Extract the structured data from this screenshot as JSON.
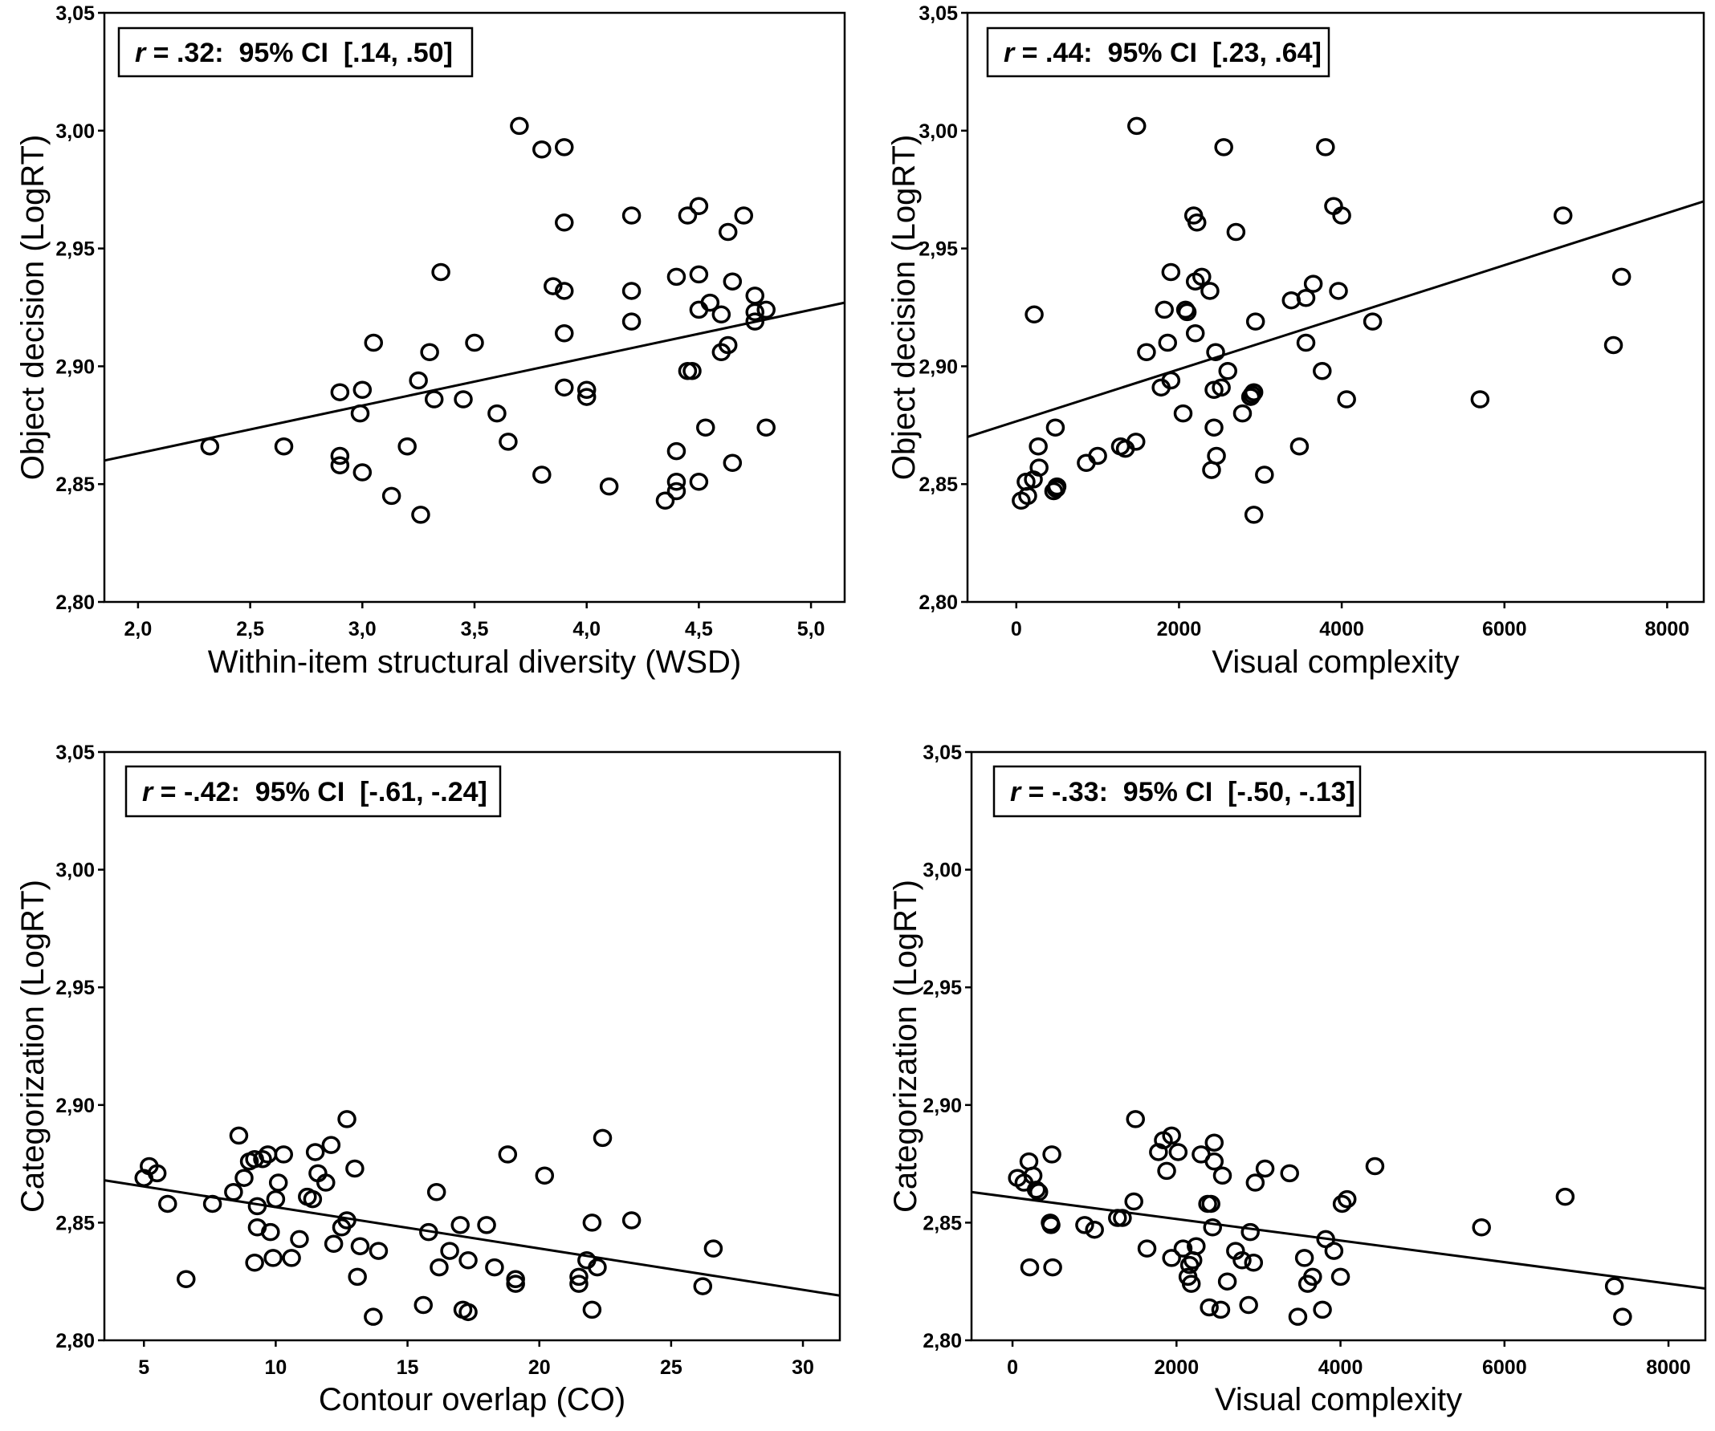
{
  "chart_data": [
    {
      "type": "scatter",
      "xlabel": "Within-item structural diversity (WSD)",
      "ylabel": "Object decision (LogRT)",
      "annotation": {
        "r_symbol": "r",
        "text": " = .32:  95% CI  [.14, .50]"
      },
      "xlim": [
        1.85,
        5.15
      ],
      "ylim": [
        2.8,
        3.05
      ],
      "xticks": [
        2.0,
        2.5,
        3.0,
        3.5,
        4.0,
        4.5,
        5.0
      ],
      "xtick_labels": [
        "2,0",
        "2,5",
        "3,0",
        "3,5",
        "4,0",
        "4,5",
        "5,0"
      ],
      "yticks": [
        2.8,
        2.85,
        2.9,
        2.95,
        3.0,
        3.05
      ],
      "ytick_labels": [
        "2,80",
        "2,85",
        "2,90",
        "2,95",
        "3,00",
        "3,05"
      ],
      "fit_line": {
        "x": [
          1.85,
          5.15
        ],
        "y": [
          2.86,
          2.927
        ]
      },
      "points": [
        [
          2.32,
          2.866
        ],
        [
          2.65,
          2.866
        ],
        [
          2.9,
          2.889
        ],
        [
          2.9,
          2.862
        ],
        [
          2.9,
          2.858
        ],
        [
          3.0,
          2.89
        ],
        [
          2.99,
          2.88
        ],
        [
          3.0,
          2.855
        ],
        [
          3.05,
          2.91
        ],
        [
          3.13,
          2.845
        ],
        [
          3.2,
          2.866
        ],
        [
          3.25,
          2.894
        ],
        [
          3.3,
          2.906
        ],
        [
          3.32,
          2.886
        ],
        [
          3.26,
          2.837
        ],
        [
          3.35,
          2.94
        ],
        [
          3.45,
          2.886
        ],
        [
          3.5,
          2.91
        ],
        [
          3.6,
          2.88
        ],
        [
          3.65,
          2.868
        ],
        [
          3.7,
          3.002
        ],
        [
          3.8,
          2.992
        ],
        [
          3.8,
          2.854
        ],
        [
          3.85,
          2.934
        ],
        [
          3.9,
          2.993
        ],
        [
          3.9,
          2.961
        ],
        [
          3.9,
          2.932
        ],
        [
          3.9,
          2.914
        ],
        [
          3.9,
          2.891
        ],
        [
          4.0,
          2.89
        ],
        [
          4.0,
          2.887
        ],
        [
          4.1,
          2.849
        ],
        [
          4.2,
          2.964
        ],
        [
          4.2,
          2.932
        ],
        [
          4.2,
          2.919
        ],
        [
          4.35,
          2.843
        ],
        [
          4.4,
          2.938
        ],
        [
          4.4,
          2.864
        ],
        [
          4.4,
          2.851
        ],
        [
          4.4,
          2.847
        ],
        [
          4.45,
          2.964
        ],
        [
          4.45,
          2.898
        ],
        [
          4.47,
          2.898
        ],
        [
          4.5,
          2.968
        ],
        [
          4.5,
          2.939
        ],
        [
          4.5,
          2.924
        ],
        [
          4.5,
          2.851
        ],
        [
          4.53,
          2.874
        ],
        [
          4.55,
          2.927
        ],
        [
          4.6,
          2.922
        ],
        [
          4.6,
          2.906
        ],
        [
          4.63,
          2.957
        ],
        [
          4.63,
          2.909
        ],
        [
          4.65,
          2.936
        ],
        [
          4.65,
          2.859
        ],
        [
          4.7,
          2.964
        ],
        [
          4.75,
          2.93
        ],
        [
          4.75,
          2.923
        ],
        [
          4.75,
          2.919
        ],
        [
          4.8,
          2.924
        ],
        [
          4.8,
          2.874
        ]
      ]
    },
    {
      "type": "scatter",
      "xlabel": "Visual complexity",
      "ylabel": "Object decision (LogRT)",
      "annotation": {
        "r_symbol": "r",
        "text": " = .44:  95% CI  [.23, .64]"
      },
      "xlim": [
        -600,
        8450
      ],
      "ylim": [
        2.8,
        3.05
      ],
      "xticks": [
        0,
        2000,
        4000,
        6000,
        8000
      ],
      "xtick_labels": [
        "0",
        "2000",
        "4000",
        "6000",
        "8000"
      ],
      "yticks": [
        2.8,
        2.85,
        2.9,
        2.95,
        3.0,
        3.05
      ],
      "ytick_labels": [
        "2,80",
        "2,85",
        "2,90",
        "2,95",
        "3,00",
        "3,05"
      ],
      "fit_line": {
        "x": [
          -600,
          8450
        ],
        "y": [
          2.87,
          2.97
        ]
      },
      "points": [
        [
          60,
          2.843
        ],
        [
          140,
          2.845
        ],
        [
          120,
          2.851
        ],
        [
          210,
          2.852
        ],
        [
          280,
          2.857
        ],
        [
          270,
          2.866
        ],
        [
          220,
          2.922
        ],
        [
          480,
          2.874
        ],
        [
          500,
          2.849
        ],
        [
          490,
          2.848
        ],
        [
          460,
          2.847
        ],
        [
          860,
          2.859
        ],
        [
          1000,
          2.862
        ],
        [
          1280,
          2.866
        ],
        [
          1340,
          2.865
        ],
        [
          1470,
          2.868
        ],
        [
          1480,
          3.002
        ],
        [
          1600,
          2.906
        ],
        [
          1780,
          2.891
        ],
        [
          1820,
          2.924
        ],
        [
          1860,
          2.91
        ],
        [
          1900,
          2.894
        ],
        [
          1900,
          2.94
        ],
        [
          2050,
          2.88
        ],
        [
          2080,
          2.924
        ],
        [
          2100,
          2.923
        ],
        [
          2180,
          2.964
        ],
        [
          2200,
          2.936
        ],
        [
          2200,
          2.914
        ],
        [
          2220,
          2.961
        ],
        [
          2280,
          2.938
        ],
        [
          2380,
          2.932
        ],
        [
          2400,
          2.856
        ],
        [
          2430,
          2.874
        ],
        [
          2430,
          2.89
        ],
        [
          2450,
          2.906
        ],
        [
          2460,
          2.862
        ],
        [
          2520,
          2.891
        ],
        [
          2550,
          2.993
        ],
        [
          2600,
          2.898
        ],
        [
          2700,
          2.957
        ],
        [
          2780,
          2.88
        ],
        [
          2880,
          2.887
        ],
        [
          2900,
          2.888
        ],
        [
          2920,
          2.837
        ],
        [
          2920,
          2.889
        ],
        [
          2940,
          2.919
        ],
        [
          3050,
          2.854
        ],
        [
          3380,
          2.928
        ],
        [
          3480,
          2.866
        ],
        [
          3560,
          2.929
        ],
        [
          3560,
          2.91
        ],
        [
          3650,
          2.935
        ],
        [
          3760,
          2.898
        ],
        [
          3800,
          2.993
        ],
        [
          3900,
          2.968
        ],
        [
          3960,
          2.932
        ],
        [
          4000,
          2.964
        ],
        [
          4060,
          2.886
        ],
        [
          4380,
          2.919
        ],
        [
          5700,
          2.886
        ],
        [
          6720,
          2.964
        ],
        [
          7340,
          2.909
        ],
        [
          7440,
          2.938
        ]
      ]
    },
    {
      "type": "scatter",
      "xlabel": "Contour overlap (CO)",
      "ylabel": "Categorization (LogRT)",
      "annotation": {
        "r_symbol": "r",
        "text": " = -.42:  95% CI  [-.61, -.24]"
      },
      "xlim": [
        3.5,
        31.4
      ],
      "ylim": [
        2.8,
        3.05
      ],
      "xticks": [
        5,
        10,
        15,
        20,
        25,
        30
      ],
      "xtick_labels": [
        "5",
        "10",
        "15",
        "20",
        "25",
        "30"
      ],
      "yticks": [
        2.8,
        2.85,
        2.9,
        2.95,
        3.0,
        3.05
      ],
      "ytick_labels": [
        "2,80",
        "2,85",
        "2,90",
        "2,95",
        "3,00",
        "3,05"
      ],
      "fit_line": {
        "x": [
          3.5,
          31.4
        ],
        "y": [
          2.868,
          2.819
        ]
      },
      "points": [
        [
          5.0,
          2.869
        ],
        [
          5.2,
          2.874
        ],
        [
          5.5,
          2.871
        ],
        [
          5.9,
          2.858
        ],
        [
          6.6,
          2.826
        ],
        [
          7.6,
          2.858
        ],
        [
          8.4,
          2.863
        ],
        [
          8.6,
          2.887
        ],
        [
          8.8,
          2.869
        ],
        [
          9.0,
          2.876
        ],
        [
          9.2,
          2.877
        ],
        [
          9.2,
          2.833
        ],
        [
          9.3,
          2.857
        ],
        [
          9.3,
          2.848
        ],
        [
          9.5,
          2.877
        ],
        [
          9.7,
          2.879
        ],
        [
          9.8,
          2.846
        ],
        [
          9.9,
          2.835
        ],
        [
          10.0,
          2.86
        ],
        [
          10.1,
          2.867
        ],
        [
          10.3,
          2.879
        ],
        [
          10.6,
          2.835
        ],
        [
          10.9,
          2.843
        ],
        [
          11.2,
          2.861
        ],
        [
          11.4,
          2.86
        ],
        [
          11.5,
          2.88
        ],
        [
          11.6,
          2.871
        ],
        [
          11.9,
          2.867
        ],
        [
          12.1,
          2.883
        ],
        [
          12.2,
          2.841
        ],
        [
          12.5,
          2.848
        ],
        [
          12.7,
          2.851
        ],
        [
          12.7,
          2.894
        ],
        [
          13.0,
          2.873
        ],
        [
          13.1,
          2.827
        ],
        [
          13.2,
          2.84
        ],
        [
          13.7,
          2.81
        ],
        [
          13.9,
          2.838
        ],
        [
          15.6,
          2.815
        ],
        [
          15.8,
          2.846
        ],
        [
          16.1,
          2.863
        ],
        [
          16.2,
          2.831
        ],
        [
          16.6,
          2.838
        ],
        [
          17.0,
          2.849
        ],
        [
          17.1,
          2.813
        ],
        [
          17.3,
          2.834
        ],
        [
          17.3,
          2.812
        ],
        [
          18.0,
          2.849
        ],
        [
          18.3,
          2.831
        ],
        [
          18.8,
          2.879
        ],
        [
          19.1,
          2.824
        ],
        [
          19.1,
          2.826
        ],
        [
          20.2,
          2.87
        ],
        [
          21.5,
          2.824
        ],
        [
          21.5,
          2.827
        ],
        [
          21.8,
          2.834
        ],
        [
          22.0,
          2.85
        ],
        [
          22.0,
          2.813
        ],
        [
          22.2,
          2.831
        ],
        [
          22.4,
          2.886
        ],
        [
          23.5,
          2.851
        ],
        [
          26.2,
          2.823
        ],
        [
          26.6,
          2.839
        ]
      ]
    },
    {
      "type": "scatter",
      "xlabel": "Visual complexity",
      "ylabel": "Categorization (LogRT)",
      "annotation": {
        "r_symbol": "r",
        "text": " = -.33:  95% CI  [-.50, -.13]"
      },
      "xlim": [
        -500,
        8450
      ],
      "ylim": [
        2.8,
        3.05
      ],
      "xticks": [
        0,
        2000,
        4000,
        6000,
        8000
      ],
      "xtick_labels": [
        "0",
        "2000",
        "4000",
        "6000",
        "8000"
      ],
      "yticks": [
        2.8,
        2.85,
        2.9,
        2.95,
        3.0,
        3.05
      ],
      "ytick_labels": [
        "2,80",
        "2,85",
        "2,90",
        "2,95",
        "3,00",
        "3,05"
      ],
      "fit_line": {
        "x": [
          -500,
          8450
        ],
        "y": [
          2.863,
          2.822
        ]
      },
      "points": [
        [
          60,
          2.869
        ],
        [
          140,
          2.867
        ],
        [
          200,
          2.876
        ],
        [
          210,
          2.831
        ],
        [
          250,
          2.87
        ],
        [
          290,
          2.864
        ],
        [
          320,
          2.863
        ],
        [
          460,
          2.85
        ],
        [
          470,
          2.849
        ],
        [
          480,
          2.879
        ],
        [
          490,
          2.831
        ],
        [
          880,
          2.849
        ],
        [
          1000,
          2.847
        ],
        [
          1280,
          2.852
        ],
        [
          1340,
          2.852
        ],
        [
          1480,
          2.859
        ],
        [
          1500,
          2.894
        ],
        [
          1640,
          2.839
        ],
        [
          1780,
          2.88
        ],
        [
          1840,
          2.885
        ],
        [
          1880,
          2.872
        ],
        [
          1940,
          2.887
        ],
        [
          1940,
          2.835
        ],
        [
          2020,
          2.88
        ],
        [
          2080,
          2.839
        ],
        [
          2140,
          2.827
        ],
        [
          2160,
          2.832
        ],
        [
          2180,
          2.824
        ],
        [
          2200,
          2.834
        ],
        [
          2240,
          2.84
        ],
        [
          2300,
          2.879
        ],
        [
          2380,
          2.858
        ],
        [
          2400,
          2.814
        ],
        [
          2420,
          2.858
        ],
        [
          2440,
          2.848
        ],
        [
          2460,
          2.884
        ],
        [
          2460,
          2.876
        ],
        [
          2540,
          2.813
        ],
        [
          2560,
          2.87
        ],
        [
          2620,
          2.825
        ],
        [
          2720,
          2.838
        ],
        [
          2800,
          2.834
        ],
        [
          2880,
          2.815
        ],
        [
          2900,
          2.846
        ],
        [
          2940,
          2.833
        ],
        [
          2960,
          2.867
        ],
        [
          3080,
          2.873
        ],
        [
          3380,
          2.871
        ],
        [
          3480,
          2.81
        ],
        [
          3560,
          2.835
        ],
        [
          3600,
          2.824
        ],
        [
          3660,
          2.827
        ],
        [
          3780,
          2.813
        ],
        [
          3820,
          2.843
        ],
        [
          3920,
          2.838
        ],
        [
          4000,
          2.827
        ],
        [
          4020,
          2.858
        ],
        [
          4080,
          2.86
        ],
        [
          4420,
          2.874
        ],
        [
          5720,
          2.848
        ],
        [
          6740,
          2.861
        ],
        [
          7340,
          2.823
        ],
        [
          7440,
          2.81
        ]
      ]
    }
  ]
}
